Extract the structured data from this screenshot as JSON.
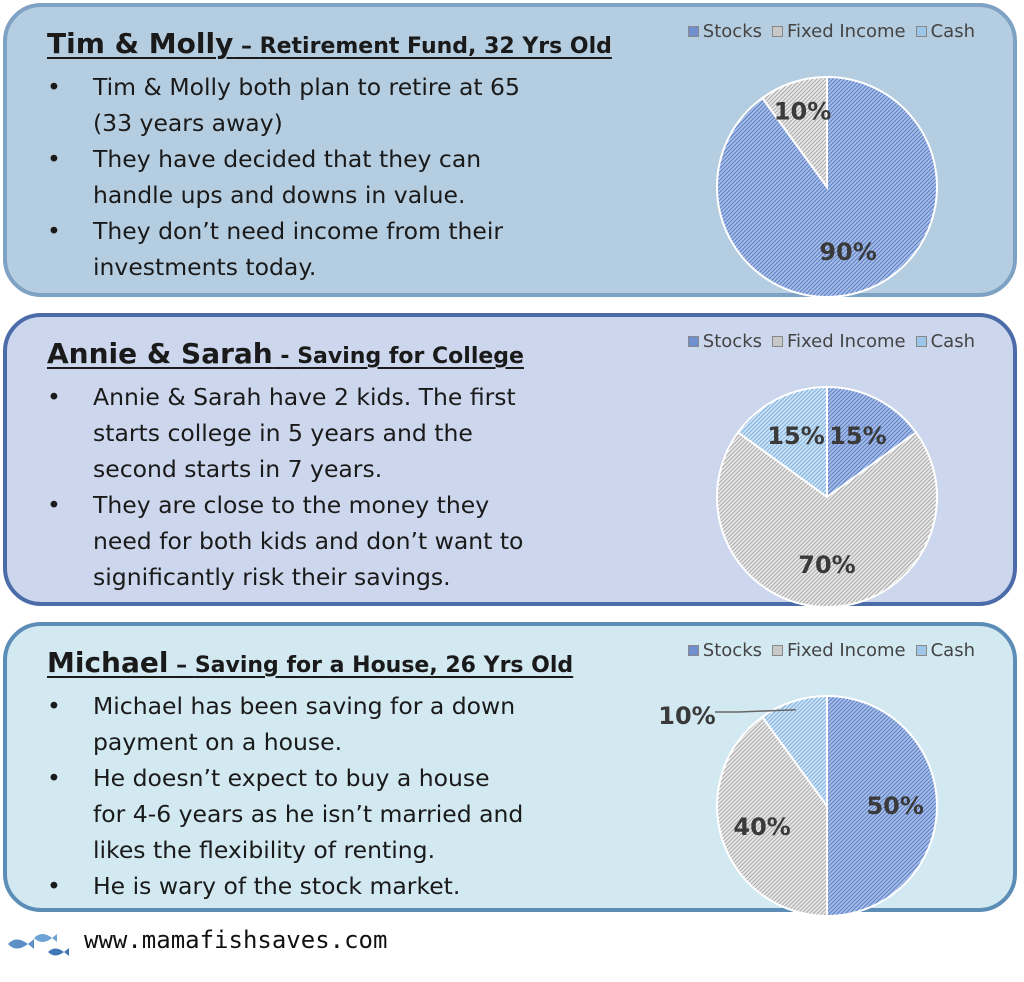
{
  "legend": [
    {
      "label": "Stocks",
      "color": "#6f8fd0"
    },
    {
      "label": "Fixed Income",
      "color": "#c8c8c8"
    },
    {
      "label": "Cash",
      "color": "#9ec6e8"
    }
  ],
  "cards": [
    {
      "title_main": "Tim & Molly",
      "title_sep": " – ",
      "title_sub": "Retirement Fund, 32 Yrs Old",
      "bullets": [
        "Tim & Molly both plan to retire at 65 (33 years away)",
        "They have decided that they can handle ups and downs in value.",
        "They don’t need income from their investments today."
      ]
    },
    {
      "title_main": "Annie & Sarah",
      "title_sep": " - ",
      "title_sub": "Saving for College",
      "bullets": [
        "Annie & Sarah have 2 kids. The first starts college in 5 years and the second starts in 7 years.",
        "They are close to the money they need for both kids and don’t want to significantly risk their savings."
      ]
    },
    {
      "title_main": "Michael",
      "title_sep": " – ",
      "title_sub": "Saving for a House, 26 Yrs Old",
      "bullets": [
        "Michael has been saving for a down payment on a house.",
        "He doesn’t expect to buy a house for 4-6 years as he isn’t married and likes the flexibility of renting.",
        "He is wary of the stock market."
      ]
    }
  ],
  "chart_data": [
    {
      "type": "pie",
      "categories": [
        "Stocks",
        "Fixed Income",
        "Cash"
      ],
      "values": [
        90,
        10,
        0
      ],
      "labels": [
        "90%",
        "10%",
        ""
      ],
      "legend_position": "top-right"
    },
    {
      "type": "pie",
      "categories": [
        "Stocks",
        "Fixed Income",
        "Cash"
      ],
      "values": [
        15,
        70,
        15
      ],
      "labels": [
        "15%",
        "70%",
        "15%"
      ],
      "legend_position": "top-right"
    },
    {
      "type": "pie",
      "categories": [
        "Stocks",
        "Fixed Income",
        "Cash"
      ],
      "values": [
        50,
        40,
        10
      ],
      "labels": [
        "50%",
        "40%",
        "10%"
      ],
      "legend_position": "top-right"
    }
  ],
  "footer": {
    "url": "www.mamafishsaves.com"
  }
}
